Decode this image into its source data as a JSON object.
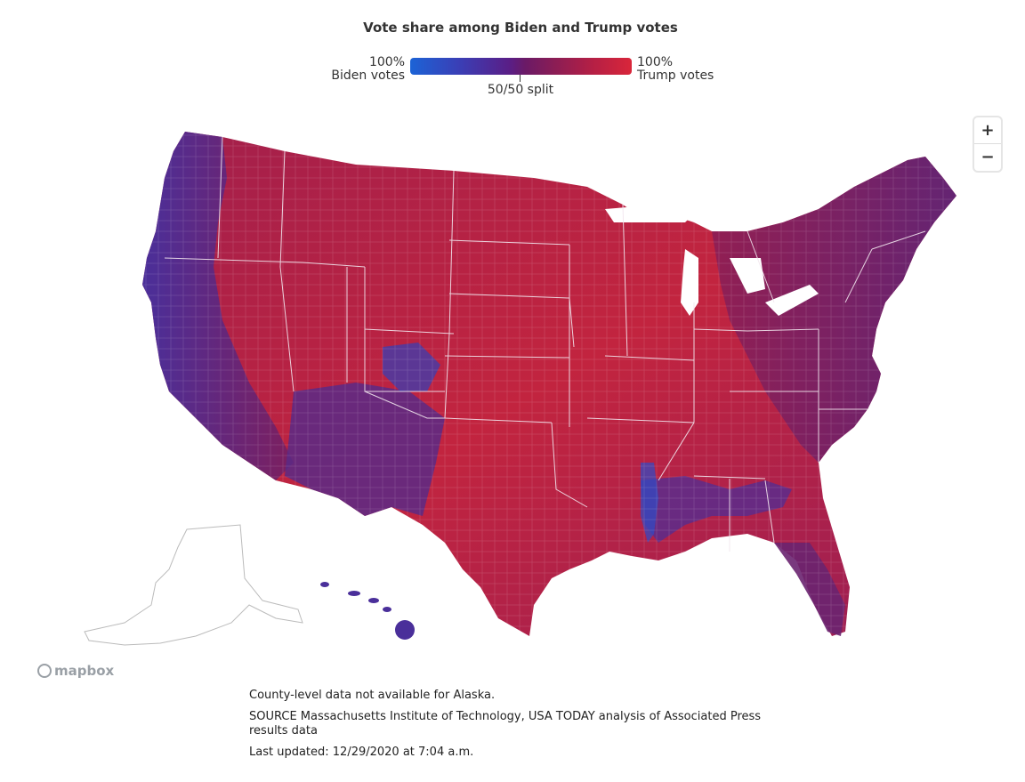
{
  "title": "Vote share among Biden and Trump votes",
  "legend": {
    "left_pct": "100%",
    "left_label": "Biden votes",
    "right_pct": "100%",
    "right_label": "Trump votes",
    "mid_label": "50/50 split",
    "colors": {
      "biden": "#1c63d6",
      "split": "#6b1a66",
      "trump": "#d9263a"
    }
  },
  "zoom": {
    "in_label": "+",
    "out_label": "−"
  },
  "attribution": {
    "logo_text": "mapbox",
    "logo_icon": "mapbox-icon"
  },
  "notes": {
    "alaska": "County-level data not available for Alaska.",
    "source": "SOURCE Massachusetts Institute of Technology, USA TODAY analysis of Associated Press results data",
    "updated": "Last updated: 12/29/2020 at 7:04 a.m."
  }
}
